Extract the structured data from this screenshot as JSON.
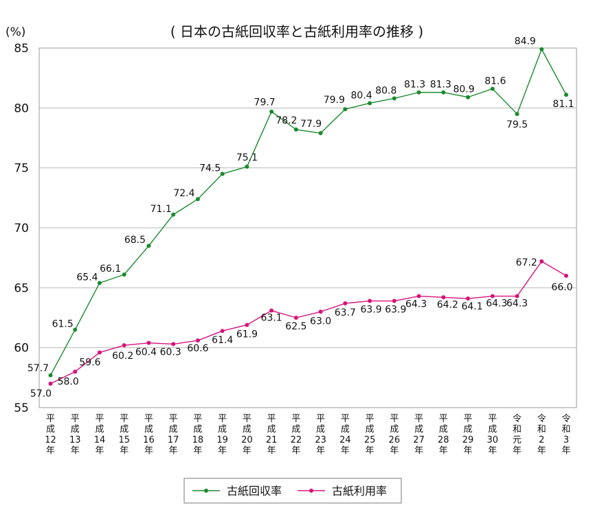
{
  "chart_data": {
    "type": "line",
    "title": "( 日本の古紙回収率と古紙利用率の推移 )",
    "unit_label": "(%)",
    "ylim": [
      55,
      85
    ],
    "y_ticks": [
      85,
      80,
      75,
      70,
      65,
      60,
      55
    ],
    "grid": true,
    "legend_position": "bottom-center",
    "categories": [
      [
        "平",
        "成",
        "12",
        "年"
      ],
      [
        "平",
        "成",
        "13",
        "年"
      ],
      [
        "平",
        "成",
        "14",
        "年"
      ],
      [
        "平",
        "成",
        "15",
        "年"
      ],
      [
        "平",
        "成",
        "16",
        "年"
      ],
      [
        "平",
        "成",
        "17",
        "年"
      ],
      [
        "平",
        "成",
        "18",
        "年"
      ],
      [
        "平",
        "成",
        "19",
        "年"
      ],
      [
        "平",
        "成",
        "20",
        "年"
      ],
      [
        "平",
        "成",
        "21",
        "年"
      ],
      [
        "平",
        "成",
        "22",
        "年"
      ],
      [
        "平",
        "成",
        "23",
        "年"
      ],
      [
        "平",
        "成",
        "24",
        "年"
      ],
      [
        "平",
        "成",
        "25",
        "年"
      ],
      [
        "平",
        "成",
        "26",
        "年"
      ],
      [
        "平",
        "成",
        "27",
        "年"
      ],
      [
        "平",
        "成",
        "28",
        "年"
      ],
      [
        "平",
        "成",
        "29",
        "年"
      ],
      [
        "平",
        "成",
        "30",
        "年"
      ],
      [
        "令",
        "和",
        "元",
        "年"
      ],
      [
        "令",
        "和",
        "2",
        "年"
      ],
      [
        "令",
        "和",
        "3",
        "年"
      ]
    ],
    "series": [
      {
        "name": "古紙回収率",
        "color": "#1a8a2e",
        "values": [
          57.7,
          61.5,
          65.4,
          66.1,
          68.5,
          71.1,
          72.4,
          74.5,
          75.1,
          79.7,
          78.2,
          77.9,
          79.9,
          80.4,
          80.8,
          81.3,
          81.3,
          80.9,
          81.6,
          79.5,
          84.9,
          81.1
        ]
      },
      {
        "name": "古紙利用率",
        "color": "#d6137a",
        "values": [
          57.0,
          58.0,
          59.6,
          60.2,
          60.4,
          60.3,
          60.6,
          61.4,
          61.9,
          63.1,
          62.5,
          63.0,
          63.7,
          63.9,
          63.9,
          64.3,
          64.2,
          64.1,
          64.3,
          64.3,
          67.2,
          66.0
        ]
      }
    ]
  }
}
